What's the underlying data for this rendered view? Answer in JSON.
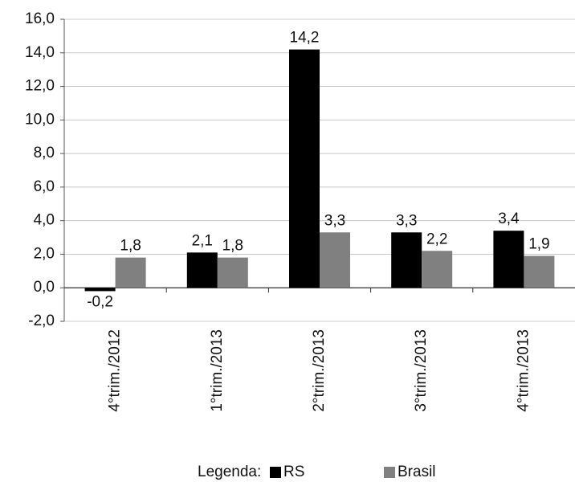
{
  "chart_data": {
    "type": "bar",
    "categories": [
      "4°trim./2012",
      "1°trim./2013",
      "2°trim./2013",
      "3°trim./2013",
      "4°trim./2013"
    ],
    "series": [
      {
        "name": "RS",
        "color": "#000000",
        "values": [
          -0.2,
          2.1,
          14.2,
          3.3,
          3.4
        ],
        "value_labels": [
          "-0,2",
          "2,1",
          "14,2",
          "3,3",
          "3,4"
        ]
      },
      {
        "name": "Brasil",
        "color": "#808080",
        "values": [
          1.8,
          1.8,
          3.3,
          2.2,
          1.9
        ],
        "value_labels": [
          "1,8",
          "1,8",
          "3,3",
          "2,2",
          "1,9"
        ]
      }
    ],
    "ylim": [
      -2,
      16
    ],
    "yticks": [
      {
        "value": -2,
        "label": "-2,0"
      },
      {
        "value": 0,
        "label": "0,0"
      },
      {
        "value": 2,
        "label": "2,0"
      },
      {
        "value": 4,
        "label": "4,0"
      },
      {
        "value": 6,
        "label": "6,0"
      },
      {
        "value": 8,
        "label": "8,0"
      },
      {
        "value": 10,
        "label": "10,0"
      },
      {
        "value": 12,
        "label": "12,0"
      },
      {
        "value": 14,
        "label": "14,0"
      },
      {
        "value": 16,
        "label": "16,0"
      }
    ],
    "grid": true,
    "legend_title": "Legenda:"
  }
}
